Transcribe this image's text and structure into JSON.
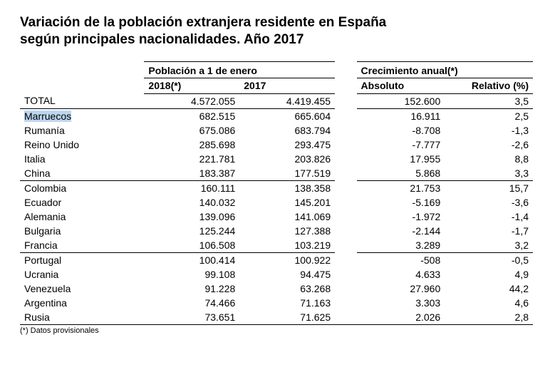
{
  "title_line1": "Variación de la población extranjera residente en España",
  "title_line2": "según principales nacionalidades. Año 2017",
  "headers": {
    "group_pop": "Población a 1 de enero",
    "group_growth": "Crecimiento anual(*)",
    "col_2018": "2018(*)",
    "col_2017": "2017",
    "col_abs": "Absoluto",
    "col_rel": "Relativo (%)"
  },
  "total_label": "TOTAL",
  "total": {
    "p2018": "4.572.055",
    "p2017": "4.419.455",
    "abs": "152.600",
    "rel": "3,5"
  },
  "rows": [
    {
      "label": "Marruecos",
      "p2018": "682.515",
      "p2017": "665.604",
      "abs": "16.911",
      "rel": "2,5",
      "highlight": true
    },
    {
      "label": "Rumanía",
      "p2018": "675.086",
      "p2017": "683.794",
      "abs": "-8.708",
      "rel": "-1,3"
    },
    {
      "label": "Reino Unido",
      "p2018": "285.698",
      "p2017": "293.475",
      "abs": "-7.777",
      "rel": "-2,6"
    },
    {
      "label": "Italia",
      "p2018": "221.781",
      "p2017": "203.826",
      "abs": "17.955",
      "rel": "8,8"
    },
    {
      "label": "China",
      "p2018": "183.387",
      "p2017": "177.519",
      "abs": "5.868",
      "rel": "3,3",
      "sep": true
    },
    {
      "label": "Colombia",
      "p2018": "160.111",
      "p2017": "138.358",
      "abs": "21.753",
      "rel": "15,7"
    },
    {
      "label": "Ecuador",
      "p2018": "140.032",
      "p2017": "145.201",
      "abs": "-5.169",
      "rel": "-3,6"
    },
    {
      "label": "Alemania",
      "p2018": "139.096",
      "p2017": "141.069",
      "abs": "-1.972",
      "rel": "-1,4"
    },
    {
      "label": "Bulgaria",
      "p2018": "125.244",
      "p2017": "127.388",
      "abs": "-2.144",
      "rel": "-1,7"
    },
    {
      "label": "Francia",
      "p2018": "106.508",
      "p2017": "103.219",
      "abs": "3.289",
      "rel": "3,2",
      "sep": true
    },
    {
      "label": "Portugal",
      "p2018": "100.414",
      "p2017": "100.922",
      "abs": "-508",
      "rel": "-0,5"
    },
    {
      "label": "Ucrania",
      "p2018": "99.108",
      "p2017": "94.475",
      "abs": "4.633",
      "rel": "4,9"
    },
    {
      "label": "Venezuela",
      "p2018": "91.228",
      "p2017": "63.268",
      "abs": "27.960",
      "rel": "44,2"
    },
    {
      "label": "Argentina",
      "p2018": "74.466",
      "p2017": "71.163",
      "abs": "3.303",
      "rel": "4,6"
    },
    {
      "label": "Rusia",
      "p2018": "73.651",
      "p2017": "71.625",
      "abs": "2.026",
      "rel": "2,8"
    }
  ],
  "footnote": "(*) Datos provisionales"
}
